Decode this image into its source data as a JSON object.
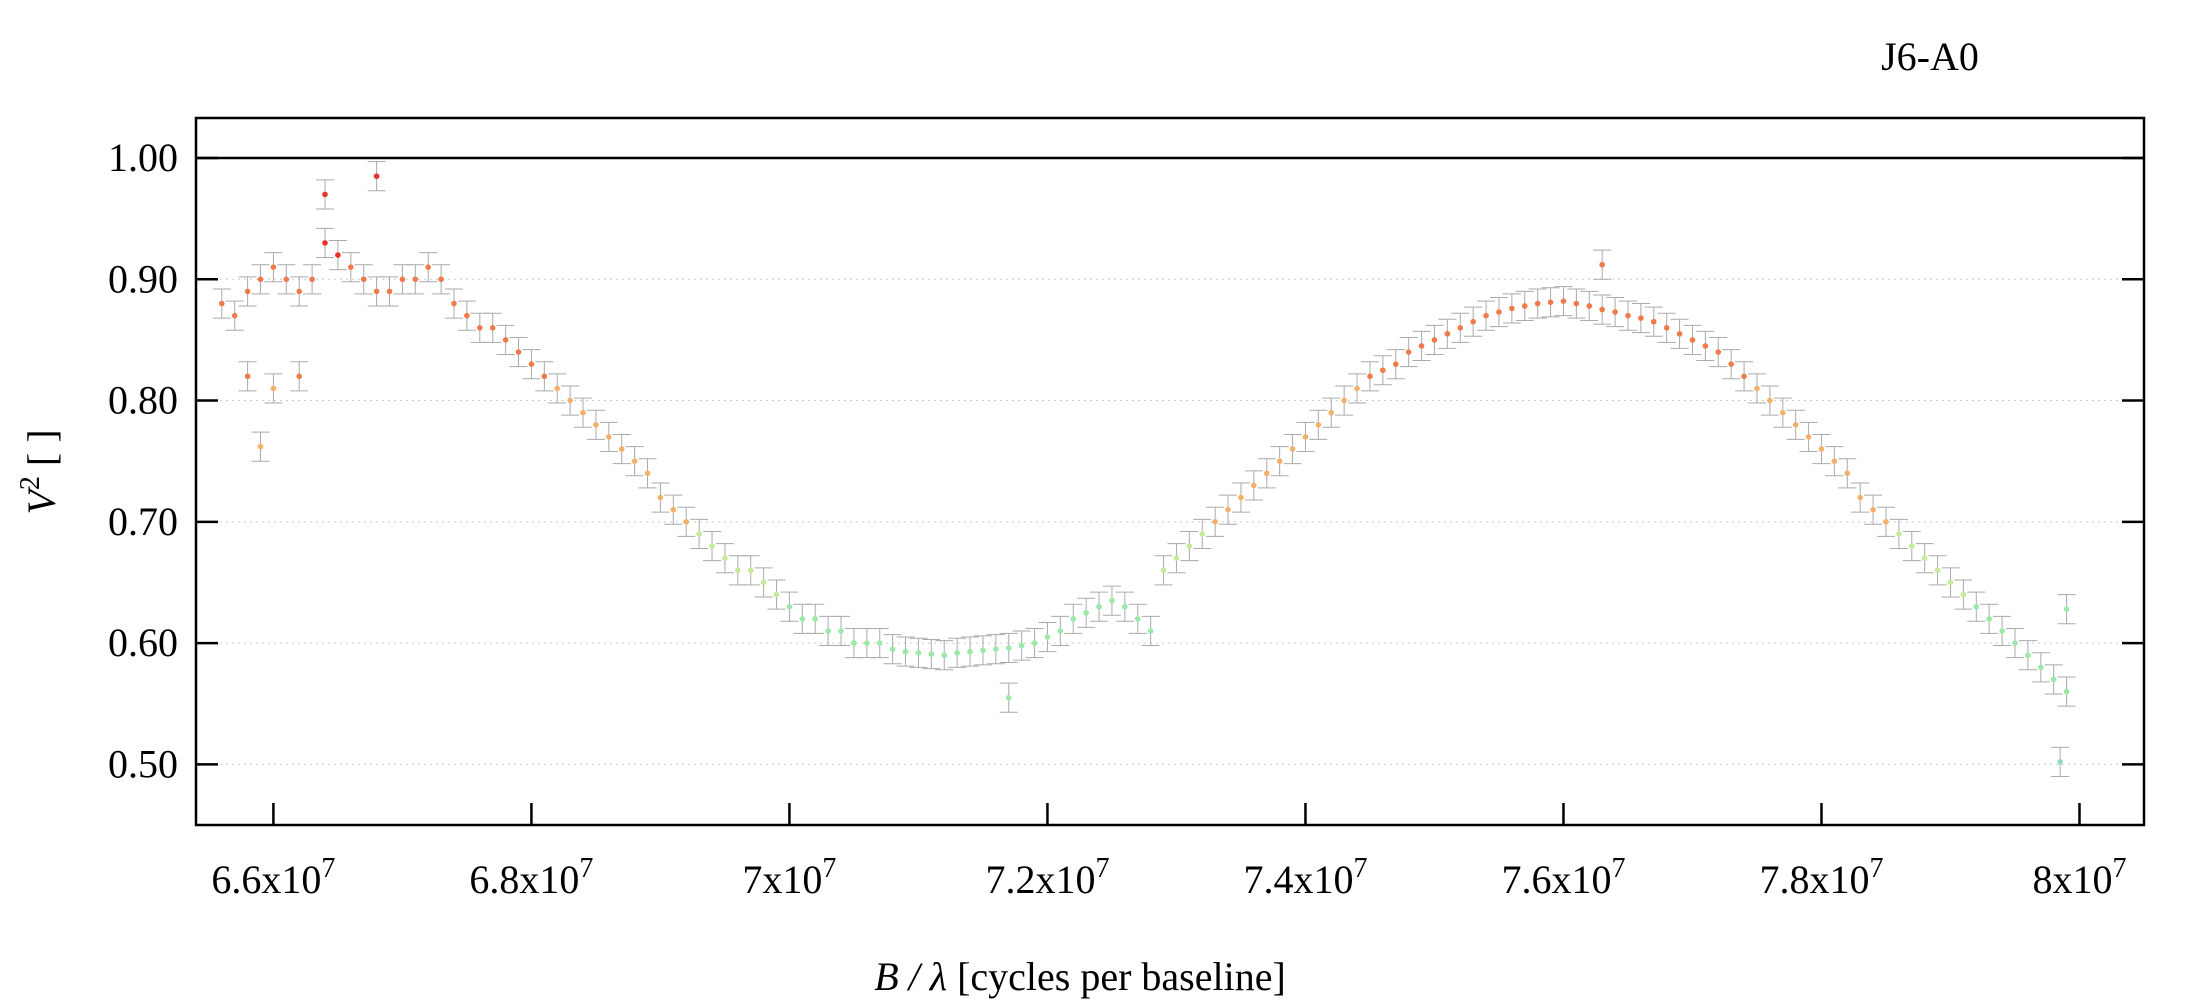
{
  "chart_data": {
    "type": "scatter",
    "title": "J6-A0",
    "xlabel_italic": "B / λ",
    "xlabel_rest": " [cycles per baseline]",
    "ylabel_base": "V",
    "ylabel_sup": "2",
    "ylabel_rest": " [ ]",
    "xlim": [
      65400000,
      80500000
    ],
    "ylim": [
      0.45,
      1.033
    ],
    "x_ticks": [
      {
        "value": 66000000,
        "mantissa": "6.6x10",
        "exp": "7"
      },
      {
        "value": 68000000,
        "mantissa": "6.8x10",
        "exp": "7"
      },
      {
        "value": 70000000,
        "mantissa": "7x10",
        "exp": "7"
      },
      {
        "value": 72000000,
        "mantissa": "7.2x10",
        "exp": "7"
      },
      {
        "value": 74000000,
        "mantissa": "7.4x10",
        "exp": "7"
      },
      {
        "value": 76000000,
        "mantissa": "7.6x10",
        "exp": "7"
      },
      {
        "value": 78000000,
        "mantissa": "7.8x10",
        "exp": "7"
      },
      {
        "value": 80000000,
        "mantissa": "8x10",
        "exp": "7"
      }
    ],
    "y_ticks": [
      {
        "value": 0.5,
        "label": "0.50"
      },
      {
        "value": 0.6,
        "label": "0.60"
      },
      {
        "value": 0.7,
        "label": "0.70"
      },
      {
        "value": 0.8,
        "label": "0.80"
      },
      {
        "value": 0.9,
        "label": "0.90"
      },
      {
        "value": 1.0,
        "label": "1.00"
      }
    ],
    "reference_line": 1.0,
    "grid": "horizontal dotted",
    "error_bar_color": "#aaaaaa",
    "color_scale": [
      "#e8342a",
      "#f07a4a",
      "#f4b06a",
      "#c8e89a",
      "#9be8a8",
      "#8fd8c8"
    ],
    "series": [
      {
        "x": [
          65600000,
          65700000,
          65800000,
          65900000,
          66000000,
          66100000,
          66200000,
          66300000,
          66400000,
          66500000,
          66600000,
          66700000,
          66800000,
          66900000,
          67000000,
          67100000,
          67200000,
          67300000,
          67400000,
          67500000,
          67600000,
          67700000,
          67800000,
          67900000,
          68000000,
          68100000,
          68200000,
          68300000,
          68400000,
          68500000,
          68600000,
          68700000,
          68800000,
          68900000,
          69000000,
          69100000,
          69200000,
          69300000,
          69400000,
          69500000,
          69600000,
          69700000,
          69800000,
          69900000,
          70000000,
          70100000,
          70200000,
          70300000,
          70400000,
          70500000,
          70600000,
          70700000,
          70800000,
          70900000,
          71000000,
          71100000,
          71200000,
          71300000,
          71400000,
          71500000,
          71600000,
          71700000,
          71800000,
          71900000,
          72000000,
          72100000,
          72200000,
          72300000,
          72400000,
          72500000,
          72600000,
          72700000,
          72800000,
          72900000,
          73000000,
          73100000,
          73200000,
          73300000,
          73400000,
          73500000,
          73600000,
          73700000,
          73800000,
          73900000,
          74000000,
          74100000,
          74200000,
          74300000,
          74400000,
          74500000,
          74600000,
          74700000,
          74800000,
          74900000,
          75000000,
          75100000,
          75200000,
          75300000,
          75400000,
          75500000,
          75600000,
          75700000,
          75800000,
          75900000,
          76000000,
          76100000,
          76200000,
          76300000,
          76400000,
          76500000,
          76600000,
          76700000,
          76800000,
          76900000,
          77000000,
          77100000,
          77200000,
          77300000,
          77400000,
          77500000,
          77600000,
          77700000,
          77800000,
          77900000,
          78000000,
          78100000,
          78200000,
          78300000,
          78400000,
          78500000,
          78600000,
          78700000,
          78800000,
          78900000,
          79000000,
          79100000,
          79200000,
          79300000,
          79400000,
          79500000,
          79600000,
          79700000,
          79800000,
          79900000
        ],
        "y": [
          0.88,
          0.87,
          0.89,
          0.9,
          0.91,
          0.9,
          0.89,
          0.9,
          0.93,
          0.92,
          0.91,
          0.9,
          0.89,
          0.89,
          0.9,
          0.9,
          0.91,
          0.9,
          0.88,
          0.87,
          0.86,
          0.86,
          0.85,
          0.84,
          0.83,
          0.82,
          0.81,
          0.8,
          0.79,
          0.78,
          0.77,
          0.76,
          0.75,
          0.74,
          0.72,
          0.71,
          0.7,
          0.69,
          0.68,
          0.67,
          0.66,
          0.66,
          0.65,
          0.64,
          0.63,
          0.62,
          0.62,
          0.61,
          0.61,
          0.6,
          0.6,
          0.6,
          0.595,
          0.593,
          0.592,
          0.591,
          0.59,
          0.592,
          0.593,
          0.594,
          0.595,
          0.596,
          0.598,
          0.6,
          0.605,
          0.61,
          0.62,
          0.625,
          0.63,
          0.635,
          0.63,
          0.62,
          0.61,
          0.66,
          0.67,
          0.68,
          0.69,
          0.7,
          0.71,
          0.72,
          0.73,
          0.74,
          0.75,
          0.76,
          0.77,
          0.78,
          0.79,
          0.8,
          0.81,
          0.82,
          0.825,
          0.83,
          0.84,
          0.845,
          0.85,
          0.855,
          0.86,
          0.865,
          0.87,
          0.873,
          0.876,
          0.878,
          0.88,
          0.881,
          0.882,
          0.88,
          0.878,
          0.875,
          0.873,
          0.87,
          0.868,
          0.865,
          0.86,
          0.855,
          0.85,
          0.845,
          0.84,
          0.83,
          0.82,
          0.81,
          0.8,
          0.79,
          0.78,
          0.77,
          0.76,
          0.75,
          0.74,
          0.72,
          0.71,
          0.7,
          0.69,
          0.68,
          0.67,
          0.66,
          0.65,
          0.64,
          0.63,
          0.62,
          0.61,
          0.6,
          0.59,
          0.58,
          0.57,
          0.56
        ],
        "outliers": [
          {
            "x": 65900000,
            "y": 0.762
          },
          {
            "x": 65800000,
            "y": 0.82
          },
          {
            "x": 66000000,
            "y": 0.81
          },
          {
            "x": 66200000,
            "y": 0.82
          },
          {
            "x": 66400000,
            "y": 0.97
          },
          {
            "x": 66800000,
            "y": 0.985
          },
          {
            "x": 76300000,
            "y": 0.912
          },
          {
            "x": 79850000,
            "y": 0.502
          },
          {
            "x": 79900000,
            "y": 0.628
          },
          {
            "x": 71700000,
            "y": 0.555
          }
        ]
      }
    ]
  }
}
